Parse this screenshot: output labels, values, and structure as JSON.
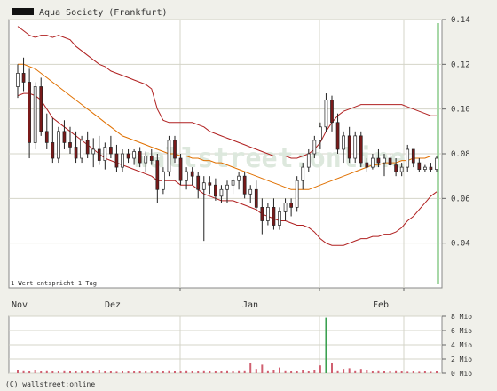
{
  "chart_data": [
    {
      "type": "candlestick",
      "title": "Aqua Society (Frankfurt)",
      "legend_position": "top-left",
      "note": "1 Wert entspricht 1 Tag",
      "y_axis_side": "right",
      "ylim": [
        0.02,
        0.14
      ],
      "yticks": [
        "0.04",
        "0.06",
        "0.08",
        "0.10",
        "0.12",
        "0.14"
      ],
      "xticks": [
        "Nov",
        "Dez",
        "Jan",
        "Feb"
      ],
      "grid": true,
      "watermark": "wallstreet:online",
      "overlays": [
        "bollinger-upper",
        "bollinger-lower",
        "moving-average"
      ],
      "candles": [
        [
          0.11,
          0.12,
          0.105,
          0.116
        ],
        [
          0.116,
          0.123,
          0.108,
          0.112
        ],
        [
          0.112,
          0.118,
          0.078,
          0.085
        ],
        [
          0.085,
          0.112,
          0.082,
          0.11
        ],
        [
          0.11,
          0.114,
          0.088,
          0.09
        ],
        [
          0.09,
          0.098,
          0.082,
          0.085
        ],
        [
          0.085,
          0.096,
          0.076,
          0.078
        ],
        [
          0.078,
          0.092,
          0.076,
          0.09
        ],
        [
          0.09,
          0.095,
          0.082,
          0.085
        ],
        [
          0.085,
          0.092,
          0.08,
          0.083
        ],
        [
          0.083,
          0.09,
          0.076,
          0.078
        ],
        [
          0.078,
          0.088,
          0.076,
          0.086
        ],
        [
          0.086,
          0.09,
          0.078,
          0.08
        ],
        [
          0.08,
          0.087,
          0.074,
          0.082
        ],
        [
          0.082,
          0.088,
          0.075,
          0.077
        ],
        [
          0.077,
          0.085,
          0.073,
          0.083
        ],
        [
          0.083,
          0.088,
          0.078,
          0.08
        ],
        [
          0.08,
          0.084,
          0.072,
          0.074
        ],
        [
          0.074,
          0.082,
          0.072,
          0.08
        ],
        [
          0.08,
          0.082,
          0.076,
          0.078
        ],
        [
          0.078,
          0.082,
          0.075,
          0.081
        ],
        [
          0.081,
          0.083,
          0.074,
          0.076
        ],
        [
          0.076,
          0.081,
          0.072,
          0.079
        ],
        [
          0.079,
          0.082,
          0.075,
          0.077
        ],
        [
          0.077,
          0.08,
          0.058,
          0.064
        ],
        [
          0.064,
          0.074,
          0.062,
          0.072
        ],
        [
          0.072,
          0.088,
          0.07,
          0.086
        ],
        [
          0.086,
          0.088,
          0.076,
          0.078
        ],
        [
          0.078,
          0.08,
          0.066,
          0.068
        ],
        [
          0.068,
          0.074,
          0.064,
          0.072
        ],
        [
          0.072,
          0.074,
          0.066,
          0.07
        ],
        [
          0.07,
          0.072,
          0.06,
          0.064
        ],
        [
          0.064,
          0.07,
          0.041,
          0.067
        ],
        [
          0.067,
          0.07,
          0.062,
          0.066
        ],
        [
          0.066,
          0.069,
          0.059,
          0.061
        ],
        [
          0.061,
          0.066,
          0.058,
          0.064
        ],
        [
          0.064,
          0.068,
          0.058,
          0.066
        ],
        [
          0.066,
          0.069,
          0.062,
          0.068
        ],
        [
          0.068,
          0.072,
          0.064,
          0.07
        ],
        [
          0.07,
          0.072,
          0.06,
          0.062
        ],
        [
          0.062,
          0.066,
          0.058,
          0.064
        ],
        [
          0.064,
          0.068,
          0.055,
          0.056
        ],
        [
          0.056,
          0.06,
          0.044,
          0.05
        ],
        [
          0.05,
          0.058,
          0.048,
          0.056
        ],
        [
          0.056,
          0.06,
          0.046,
          0.048
        ],
        [
          0.048,
          0.056,
          0.046,
          0.054
        ],
        [
          0.054,
          0.06,
          0.05,
          0.058
        ],
        [
          0.058,
          0.06,
          0.052,
          0.056
        ],
        [
          0.056,
          0.07,
          0.054,
          0.068
        ],
        [
          0.068,
          0.076,
          0.064,
          0.074
        ],
        [
          0.074,
          0.082,
          0.072,
          0.08
        ],
        [
          0.08,
          0.088,
          0.078,
          0.086
        ],
        [
          0.086,
          0.094,
          0.082,
          0.092
        ],
        [
          0.092,
          0.107,
          0.09,
          0.104
        ],
        [
          0.104,
          0.106,
          0.09,
          0.094
        ],
        [
          0.094,
          0.098,
          0.08,
          0.082
        ],
        [
          0.082,
          0.09,
          0.076,
          0.088
        ],
        [
          0.088,
          0.092,
          0.076,
          0.078
        ],
        [
          0.078,
          0.09,
          0.076,
          0.088
        ],
        [
          0.088,
          0.09,
          0.074,
          0.076
        ],
        [
          0.076,
          0.078,
          0.072,
          0.074
        ],
        [
          0.074,
          0.08,
          0.073,
          0.078
        ],
        [
          0.078,
          0.082,
          0.074,
          0.076
        ],
        [
          0.076,
          0.08,
          0.07,
          0.078
        ],
        [
          0.078,
          0.08,
          0.074,
          0.075
        ],
        [
          0.075,
          0.078,
          0.07,
          0.072
        ],
        [
          0.072,
          0.076,
          0.07,
          0.074
        ],
        [
          0.074,
          0.084,
          0.072,
          0.082
        ],
        [
          0.082,
          0.082,
          0.074,
          0.076
        ],
        [
          0.076,
          0.078,
          0.072,
          0.073
        ],
        [
          0.073,
          0.075,
          0.072,
          0.074
        ],
        [
          0.074,
          0.076,
          0.072,
          0.073
        ],
        [
          0.073,
          0.079,
          0.072,
          0.078
        ]
      ],
      "upper_band": [
        0.137,
        0.135,
        0.133,
        0.132,
        0.133,
        0.133,
        0.132,
        0.133,
        0.132,
        0.131,
        0.128,
        0.126,
        0.124,
        0.122,
        0.12,
        0.119,
        0.117,
        0.116,
        0.115,
        0.114,
        0.113,
        0.112,
        0.111,
        0.109,
        0.1,
        0.095,
        0.094,
        0.094,
        0.094,
        0.094,
        0.094,
        0.093,
        0.092,
        0.09,
        0.089,
        0.088,
        0.087,
        0.086,
        0.085,
        0.084,
        0.083,
        0.082,
        0.081,
        0.08,
        0.079,
        0.079,
        0.079,
        0.078,
        0.078,
        0.079,
        0.08,
        0.082,
        0.085,
        0.09,
        0.094,
        0.097,
        0.099,
        0.1,
        0.101,
        0.102,
        0.102,
        0.102,
        0.102,
        0.102,
        0.102,
        0.102,
        0.102,
        0.101,
        0.1,
        0.099,
        0.098,
        0.097,
        0.097
      ],
      "moving_average": [
        0.12,
        0.12,
        0.119,
        0.118,
        0.116,
        0.114,
        0.112,
        0.11,
        0.108,
        0.106,
        0.104,
        0.102,
        0.1,
        0.098,
        0.096,
        0.094,
        0.092,
        0.09,
        0.088,
        0.087,
        0.086,
        0.085,
        0.084,
        0.083,
        0.082,
        0.081,
        0.08,
        0.08,
        0.079,
        0.079,
        0.078,
        0.078,
        0.077,
        0.077,
        0.076,
        0.076,
        0.075,
        0.074,
        0.073,
        0.072,
        0.071,
        0.07,
        0.069,
        0.068,
        0.067,
        0.066,
        0.065,
        0.064,
        0.064,
        0.064,
        0.064,
        0.065,
        0.066,
        0.067,
        0.068,
        0.069,
        0.07,
        0.071,
        0.072,
        0.073,
        0.074,
        0.075,
        0.075,
        0.076,
        0.076,
        0.076,
        0.077,
        0.077,
        0.078,
        0.078,
        0.078,
        0.079,
        0.079
      ],
      "lower_band": [
        0.106,
        0.107,
        0.107,
        0.106,
        0.104,
        0.1,
        0.096,
        0.094,
        0.092,
        0.09,
        0.088,
        0.086,
        0.084,
        0.082,
        0.08,
        0.078,
        0.077,
        0.076,
        0.075,
        0.074,
        0.073,
        0.072,
        0.071,
        0.07,
        0.068,
        0.068,
        0.068,
        0.068,
        0.066,
        0.066,
        0.066,
        0.064,
        0.062,
        0.061,
        0.06,
        0.059,
        0.059,
        0.059,
        0.058,
        0.057,
        0.056,
        0.055,
        0.053,
        0.052,
        0.051,
        0.05,
        0.05,
        0.049,
        0.048,
        0.048,
        0.047,
        0.045,
        0.042,
        0.04,
        0.039,
        0.039,
        0.039,
        0.04,
        0.041,
        0.042,
        0.042,
        0.043,
        0.043,
        0.044,
        0.044,
        0.045,
        0.047,
        0.05,
        0.052,
        0.055,
        0.058,
        0.061,
        0.063
      ]
    },
    {
      "type": "bar",
      "title": "",
      "ylim": [
        0,
        8
      ],
      "yticks": [
        "0 Mio",
        "2 Mio",
        "4 Mio",
        "6 Mio",
        "8 Mio"
      ],
      "highlight_index": 53,
      "values": [
        0.5,
        0.4,
        0.3,
        0.5,
        0.3,
        0.4,
        0.3,
        0.3,
        0.4,
        0.3,
        0.3,
        0.4,
        0.3,
        0.3,
        0.5,
        0.3,
        0.3,
        0.2,
        0.3,
        0.3,
        0.3,
        0.3,
        0.3,
        0.3,
        0.3,
        0.3,
        0.4,
        0.3,
        0.3,
        0.4,
        0.3,
        0.3,
        0.4,
        0.3,
        0.3,
        0.3,
        0.4,
        0.3,
        0.4,
        0.4,
        1.5,
        0.6,
        1.2,
        0.4,
        0.5,
        0.8,
        0.4,
        0.3,
        0.3,
        0.5,
        0.3,
        0.5,
        1.1,
        7.8,
        1.5,
        0.4,
        0.6,
        0.7,
        0.4,
        0.6,
        0.5,
        0.3,
        0.4,
        0.3,
        0.3,
        0.4,
        0.3,
        0.2,
        0.3,
        0.2,
        0.3,
        0.2,
        0.3
      ]
    }
  ],
  "footer": {
    "copyright": "(C) wallstreet:online"
  },
  "colors": {
    "candle_up": "#ffffff",
    "candle_down": "#7a1a1a",
    "band": "#b02020",
    "average": "#e07000",
    "volume": "#d06070",
    "volume_highlight": "#3aa050",
    "grid": "#d4d4c8",
    "plot_bg": "#ffffff",
    "right_edge": "#a8d8a8"
  }
}
